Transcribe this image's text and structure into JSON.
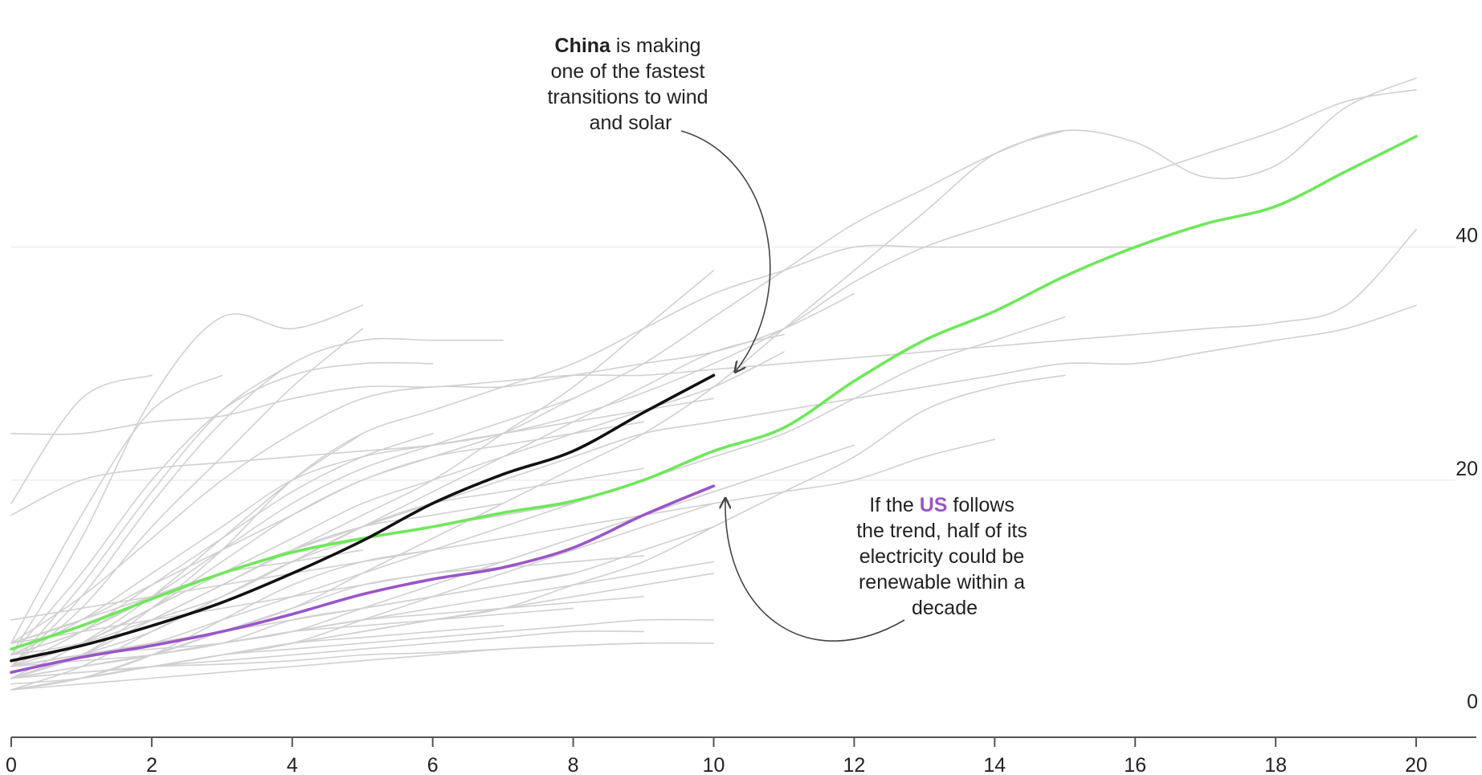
{
  "chart_data": {
    "type": "line",
    "xlabel": "",
    "ylabel": "",
    "xlim": [
      0,
      20.4
    ],
    "ylim": [
      0,
      59
    ],
    "grid": true,
    "x_ticks": [
      "0",
      "2",
      "4",
      "6",
      "8",
      "10",
      "12",
      "14",
      "16",
      "18",
      "20"
    ],
    "y_ticks": [
      "0",
      "20",
      "40"
    ],
    "colors": {
      "background_series": "#d0d0d0",
      "china": "#111111",
      "trend": "#6ee85a",
      "us": "#9a55c8",
      "axis": "#555555",
      "grid": "#eeeeee"
    },
    "highlight_series": [
      {
        "name": "China",
        "x": [
          0,
          1,
          2,
          3,
          4,
          5,
          6,
          7,
          8,
          9,
          10
        ],
        "y": [
          4.5,
          5.8,
          7.5,
          9.5,
          12,
          14.8,
          18,
          20.5,
          22.5,
          25.8,
          29
        ]
      },
      {
        "name": "US",
        "x": [
          0,
          1,
          2,
          3,
          4,
          5,
          6,
          7,
          8,
          9,
          10
        ],
        "y": [
          3.5,
          4.8,
          5.8,
          7,
          8.5,
          10.2,
          11.5,
          12.5,
          14.2,
          17,
          19.5
        ]
      },
      {
        "x": [
          0,
          1,
          2,
          3,
          4,
          5,
          6,
          7,
          8,
          9,
          10,
          11,
          12,
          13,
          14,
          15,
          16,
          17,
          18,
          19,
          20
        ],
        "y": [
          5.5,
          7.5,
          9.8,
          12,
          13.8,
          15,
          16,
          17.2,
          18.2,
          20,
          22.5,
          24.5,
          28.5,
          32,
          34.5,
          37.5,
          40,
          42,
          43.5,
          46.5,
          49.5
        ]
      }
    ],
    "background_series": [
      {
        "x": [
          0,
          1,
          2,
          3,
          4,
          5,
          6,
          7,
          8,
          9,
          10,
          11,
          12,
          13,
          14,
          15,
          16,
          17,
          18,
          19,
          20
        ],
        "y": [
          24,
          24,
          25,
          25.5,
          27,
          28,
          28,
          28.5,
          29,
          29,
          29.5,
          30,
          30.5,
          31,
          31.5,
          32,
          32.5,
          33,
          33.5,
          35,
          41.5
        ]
      },
      {
        "x": [
          0,
          1,
          2,
          3,
          4,
          5,
          6,
          7,
          8,
          9,
          10,
          11,
          12,
          13,
          14,
          15,
          16,
          17,
          18,
          19,
          20
        ],
        "y": [
          17,
          20,
          21,
          21.5,
          22,
          22.5,
          23,
          24,
          25.5,
          27.5,
          30,
          33,
          37,
          40,
          42,
          44,
          46,
          48,
          50,
          52.5,
          53.5
        ]
      },
      {
        "x": [
          0,
          1,
          2,
          3,
          4,
          5,
          6,
          7,
          8,
          9,
          10,
          11,
          12,
          13,
          14,
          15,
          16,
          17,
          18,
          19,
          20
        ],
        "y": [
          6,
          8,
          11,
          14,
          17,
          20,
          22,
          24,
          27,
          30,
          34,
          38,
          42,
          45,
          48,
          50,
          49,
          46,
          47,
          52,
          54.5
        ]
      },
      {
        "x": [
          0,
          1,
          2,
          3,
          4,
          5,
          6,
          7,
          8,
          9,
          10,
          11,
          12,
          13,
          14,
          15,
          16
        ],
        "y": [
          3,
          5,
          9,
          14,
          20,
          24,
          26,
          28,
          30,
          33,
          36,
          38,
          40,
          40,
          40,
          40,
          40
        ]
      },
      {
        "x": [
          0,
          1,
          2,
          3,
          4,
          5,
          6,
          7,
          8,
          9,
          10,
          11,
          12,
          13,
          14,
          15,
          16,
          17,
          18,
          19,
          20
        ],
        "y": [
          5,
          7,
          10,
          12,
          14,
          16,
          18,
          20,
          22,
          24,
          25,
          26,
          27,
          28,
          29,
          30,
          30,
          31,
          32,
          33,
          35
        ]
      },
      {
        "x": [
          0,
          1,
          2,
          3,
          4,
          5,
          6,
          7,
          8,
          9,
          10,
          11,
          12,
          13,
          14,
          15
        ],
        "y": [
          3,
          4,
          5,
          7,
          9,
          12,
          15,
          18,
          21,
          24,
          28,
          33,
          38,
          43,
          48,
          50
        ]
      },
      {
        "x": [
          0,
          1,
          2,
          3,
          4,
          5,
          6,
          7,
          8,
          9,
          10,
          11,
          12,
          13,
          14,
          15
        ],
        "y": [
          4,
          5,
          6,
          8,
          10,
          12,
          14,
          16,
          18,
          20,
          22,
          24,
          27,
          30,
          32,
          34
        ]
      },
      {
        "x": [
          0,
          1,
          2,
          3,
          4,
          5,
          6,
          7,
          8,
          9,
          10,
          11,
          12,
          13,
          14,
          15
        ],
        "y": [
          2,
          3,
          4,
          5,
          6,
          7,
          8,
          9,
          11,
          13,
          16,
          19,
          22,
          26,
          28,
          29
        ]
      },
      {
        "x": [
          0,
          1,
          2,
          3,
          4,
          5,
          6,
          7,
          8,
          9,
          10,
          11,
          12,
          13,
          14
        ],
        "y": [
          8,
          9,
          10,
          11,
          12,
          13,
          14,
          15,
          16,
          17,
          18,
          19,
          20,
          22,
          23.5
        ]
      },
      {
        "x": [
          0,
          1,
          2,
          3,
          4,
          5,
          6,
          7,
          8,
          9,
          10,
          11,
          12
        ],
        "y": [
          6,
          10,
          15,
          20,
          24,
          27,
          28,
          28,
          29,
          30,
          31,
          33,
          36
        ]
      },
      {
        "x": [
          0,
          1,
          2,
          3,
          4,
          5,
          6,
          7,
          8,
          9,
          10,
          11,
          12
        ],
        "y": [
          3,
          4,
          5,
          6,
          7,
          9,
          11,
          13,
          15,
          17,
          19,
          21,
          23
        ]
      },
      {
        "x": [
          0,
          1,
          2,
          3,
          4,
          5,
          6,
          7,
          8,
          9,
          10,
          11
        ],
        "y": [
          5,
          6,
          8,
          10,
          13,
          16,
          19,
          22,
          25,
          28,
          31,
          32.5
        ]
      },
      {
        "x": [
          0,
          1,
          2,
          3,
          4,
          5,
          6,
          7,
          8,
          9,
          10,
          11
        ],
        "y": [
          4,
          6,
          9,
          12,
          15,
          18,
          20,
          22,
          24,
          26,
          28,
          31
        ]
      },
      {
        "x": [
          0,
          1,
          2,
          3,
          4,
          5,
          6,
          7,
          8,
          9,
          10
        ],
        "y": [
          3,
          5,
          8,
          11,
          14,
          17,
          20,
          24,
          28,
          33,
          38
        ]
      },
      {
        "x": [
          0,
          1,
          2,
          3,
          4,
          5,
          6,
          7,
          8,
          9,
          10
        ],
        "y": [
          2,
          3,
          4,
          5,
          6,
          8,
          10,
          12,
          14,
          16,
          18
        ]
      },
      {
        "x": [
          0,
          1,
          2,
          3,
          4,
          5,
          6,
          7,
          8,
          9,
          10
        ],
        "y": [
          3,
          4,
          5,
          6,
          7,
          8,
          9,
          10,
          11,
          12,
          13
        ]
      },
      {
        "x": [
          0,
          1,
          2,
          3,
          4,
          5,
          6,
          7,
          8,
          9,
          10
        ],
        "y": [
          5,
          8,
          12,
          16,
          20,
          22,
          23,
          24,
          25,
          26,
          27
        ]
      },
      {
        "x": [
          0,
          1,
          2,
          3,
          4,
          5,
          6,
          7,
          8,
          9,
          10
        ],
        "y": [
          4,
          5,
          6,
          7,
          8,
          9,
          10,
          11,
          12,
          14,
          16
        ]
      },
      {
        "x": [
          0,
          1,
          2,
          3,
          4,
          5,
          6,
          7,
          8,
          9,
          10
        ],
        "y": [
          2.5,
          3,
          4,
          5,
          6,
          7,
          8,
          9,
          10,
          11,
          12
        ]
      },
      {
        "x": [
          0,
          1,
          2,
          3,
          4,
          5,
          6,
          7,
          8,
          9,
          10
        ],
        "y": [
          3,
          3.5,
          4,
          5,
          5.5,
          6,
          6.5,
          7,
          7.5,
          8,
          8
        ]
      },
      {
        "x": [
          0,
          1,
          2,
          3,
          4,
          5,
          6,
          7,
          8,
          9,
          10
        ],
        "y": [
          2,
          2.5,
          3,
          3.5,
          4,
          4.5,
          5,
          5.5,
          5.8,
          6,
          6
        ]
      },
      {
        "x": [
          0,
          1,
          2,
          3,
          4,
          5,
          6,
          7,
          8,
          9
        ],
        "y": [
          4,
          6,
          9,
          13,
          17,
          20,
          22,
          23,
          24,
          25
        ]
      },
      {
        "x": [
          0,
          1,
          2,
          3,
          4,
          5,
          6,
          7,
          8,
          9
        ],
        "y": [
          3,
          5,
          7,
          10,
          13,
          16,
          18,
          19,
          20,
          21
        ]
      },
      {
        "x": [
          0,
          1,
          2,
          3,
          4,
          5,
          6,
          7,
          8,
          9
        ],
        "y": [
          6,
          7,
          8,
          9,
          10,
          11,
          12,
          12.5,
          13,
          13.5
        ]
      },
      {
        "x": [
          0,
          1,
          2,
          3,
          4,
          5,
          6,
          7,
          8,
          9
        ],
        "y": [
          4,
          4.5,
          5,
          6,
          7,
          8,
          8.5,
          9,
          9.5,
          10
        ]
      },
      {
        "x": [
          0,
          1,
          2,
          3,
          4,
          5,
          6,
          7,
          8,
          9
        ],
        "y": [
          2,
          3,
          4,
          4.5,
          5,
          5.5,
          6,
          6.5,
          7,
          7
        ]
      },
      {
        "x": [
          0,
          1,
          2,
          3,
          4,
          5,
          6,
          7,
          8,
          9
        ],
        "y": [
          3,
          3.5,
          4,
          4.2,
          4.5,
          5,
          5.2,
          5.5,
          5.8,
          6
        ]
      },
      {
        "x": [
          0,
          1,
          2,
          3,
          4,
          5,
          6,
          7,
          8
        ],
        "y": [
          5,
          7,
          10,
          14,
          18,
          21,
          23,
          25,
          27
        ]
      },
      {
        "x": [
          0,
          1,
          2,
          3,
          4,
          5,
          6,
          7,
          8
        ],
        "y": [
          2,
          4,
          7,
          10,
          13,
          15,
          16,
          17,
          18
        ]
      },
      {
        "x": [
          0,
          1,
          2,
          3,
          4,
          5,
          6,
          7,
          8
        ],
        "y": [
          3,
          4,
          5,
          6,
          8,
          9,
          10,
          11,
          12
        ]
      },
      {
        "x": [
          0,
          1,
          2,
          3,
          4,
          5,
          6,
          7,
          8
        ],
        "y": [
          4,
          5,
          5.5,
          6,
          7,
          7.5,
          8,
          8.5,
          9
        ]
      },
      {
        "x": [
          0,
          1,
          2,
          3,
          4,
          5,
          6,
          7
        ],
        "y": [
          4,
          10,
          18,
          25,
          30,
          32,
          32,
          32
        ]
      },
      {
        "x": [
          0,
          1,
          2,
          3,
          4,
          5,
          6,
          7
        ],
        "y": [
          3,
          5,
          8,
          11,
          14,
          16,
          17,
          18
        ]
      },
      {
        "x": [
          0,
          1,
          2,
          3,
          4,
          5,
          6,
          7
        ],
        "y": [
          2,
          3,
          5,
          7,
          9,
          11,
          12,
          13
        ]
      },
      {
        "x": [
          0,
          1,
          2,
          3,
          4,
          5,
          6,
          7
        ],
        "y": [
          3,
          3.5,
          4,
          5,
          6,
          6.5,
          7,
          7.5
        ]
      },
      {
        "x": [
          0,
          1,
          2,
          3,
          4,
          5,
          6
        ],
        "y": [
          5,
          12,
          20,
          26,
          29,
          30,
          30
        ]
      },
      {
        "x": [
          0,
          1,
          2,
          3,
          4,
          5,
          6
        ],
        "y": [
          4,
          7,
          11,
          15,
          19,
          22,
          24
        ]
      },
      {
        "x": [
          0,
          1,
          2,
          3,
          4,
          5,
          6
        ],
        "y": [
          2,
          3,
          5,
          8,
          11,
          13,
          14
        ]
      },
      {
        "x": [
          0,
          1,
          2,
          3,
          4,
          5
        ],
        "y": [
          5,
          15,
          27,
          34,
          33,
          35
        ]
      },
      {
        "x": [
          0,
          1,
          2,
          3,
          4,
          5
        ],
        "y": [
          4,
          9,
          16,
          22,
          28,
          33
        ]
      },
      {
        "x": [
          0,
          1,
          2,
          3,
          4,
          5
        ],
        "y": [
          3,
          6,
          10,
          15,
          20,
          24
        ]
      },
      {
        "x": [
          0,
          1,
          2,
          3,
          4,
          5
        ],
        "y": [
          6,
          8,
          10,
          12,
          13,
          14
        ]
      },
      {
        "x": [
          0,
          1,
          2,
          3,
          4
        ],
        "y": [
          4,
          11,
          19,
          26,
          30
        ]
      },
      {
        "x": [
          0,
          1,
          2,
          3
        ],
        "y": [
          6,
          17,
          26,
          29
        ]
      },
      {
        "x": [
          0,
          1,
          2
        ],
        "y": [
          18,
          27,
          29
        ]
      }
    ],
    "annotations": [
      {
        "target": "China",
        "parts": [
          {
            "text": "China",
            "bold": true
          },
          {
            "text": " is making"
          },
          {
            "text": "one of the fastest"
          },
          {
            "text": "transitions to wind"
          },
          {
            "text": "and solar"
          }
        ]
      },
      {
        "target": "US",
        "parts": [
          {
            "text": "If the "
          },
          {
            "text": "US",
            "bold": true
          },
          {
            "text": " follows"
          },
          {
            "text": "the trend, half of its"
          },
          {
            "text": "electricity could be"
          },
          {
            "text": "renewable within a"
          },
          {
            "text": "decade"
          }
        ]
      }
    ]
  }
}
